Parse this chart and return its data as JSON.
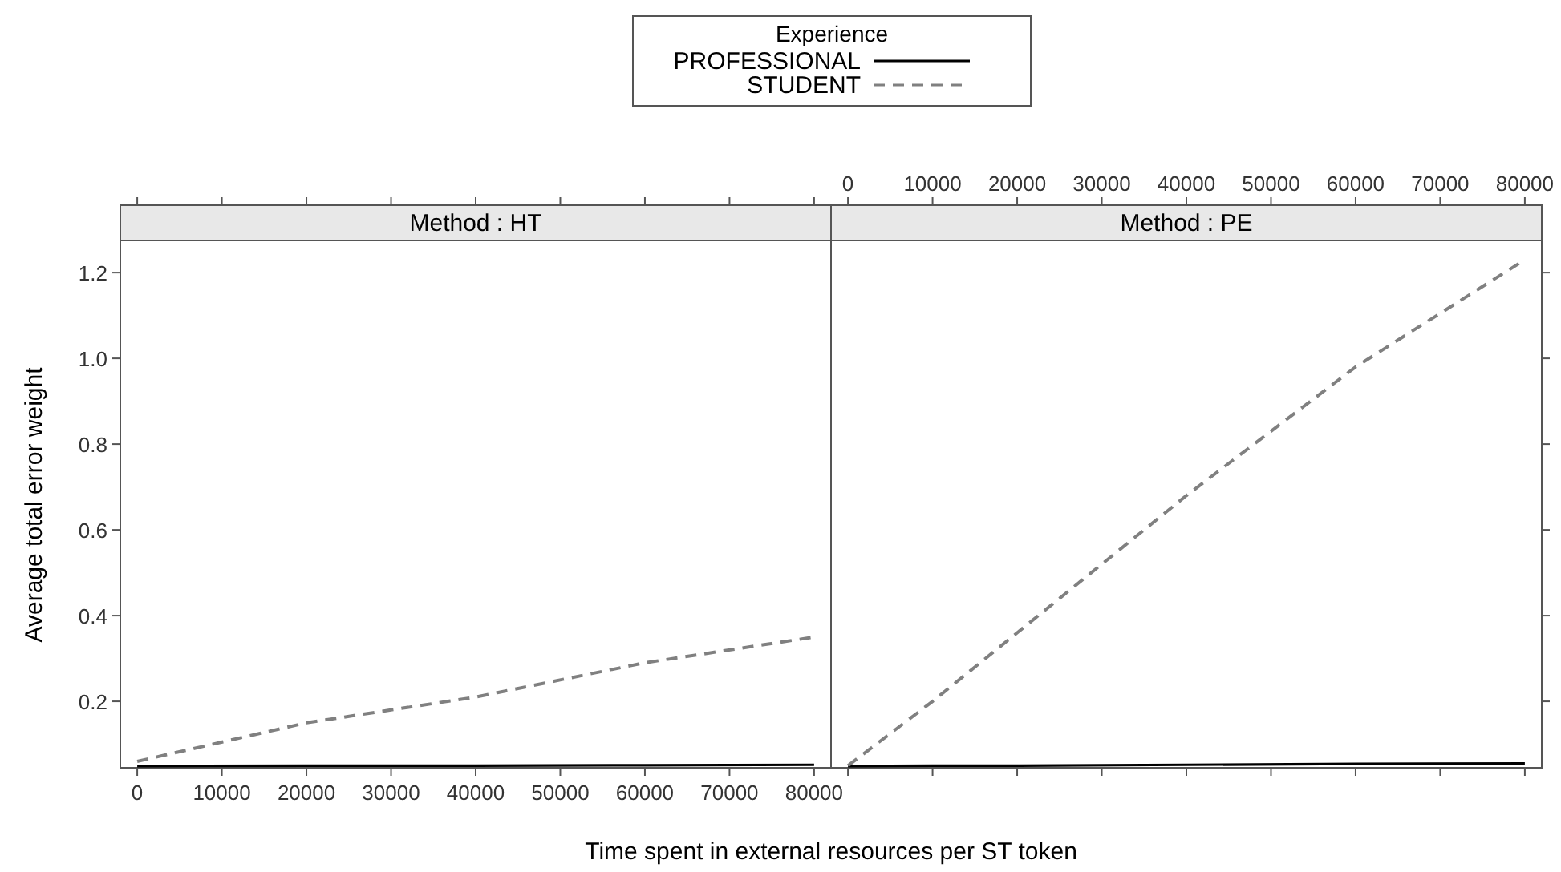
{
  "chart_data": [
    {
      "type": "line",
      "title": "Method : HT",
      "xlabel": "Time spent in external resources per ST token",
      "ylabel": "Average total error weight",
      "legend_title": "Experience",
      "legend": "top",
      "x": [
        0,
        20000,
        40000,
        60000,
        80000
      ],
      "xlim": [
        -2000,
        82000
      ],
      "xticks": [
        0,
        10000,
        20000,
        30000,
        40000,
        50000,
        60000,
        70000,
        80000
      ],
      "ylim": [
        0.045,
        1.275
      ],
      "yticks": [
        0.2,
        0.4,
        0.6,
        0.8,
        {
          "value": 1,
          "label": "1.0"
        },
        1.2
      ],
      "series": [
        {
          "name": "PROFESSIONAL",
          "color": "#000000",
          "line_style": "solid",
          "values": [
            0.049,
            0.05,
            0.05,
            0.051,
            0.052
          ]
        },
        {
          "name": "STUDENT",
          "color": "#808080",
          "line_style": "dashed",
          "values": [
            0.06,
            0.15,
            0.21,
            0.29,
            0.35
          ]
        }
      ]
    },
    {
      "type": "line",
      "title": "Method : PE",
      "tick_labels": "x",
      "x": [
        0,
        10000,
        20000,
        40000,
        60000,
        80000
      ],
      "xlim": [
        -2000,
        82000
      ],
      "xticks": [
        0,
        10000,
        20000,
        30000,
        40000,
        50000,
        60000,
        70000,
        80000
      ],
      "ylim": [
        0.045,
        1.275
      ],
      "yticks": [
        0.2,
        0.4,
        0.6,
        0.8,
        1.0,
        1.2
      ],
      "series": [
        {
          "color": "#000000",
          "line_style": "solid",
          "values": [
            0.049,
            0.05,
            0.05,
            0.052,
            0.054,
            0.055
          ]
        },
        {
          "color": "#808080",
          "line_style": "dashed",
          "values": [
            0.05,
            0.2,
            0.36,
            0.68,
            0.98,
            1.23
          ]
        }
      ]
    }
  ]
}
